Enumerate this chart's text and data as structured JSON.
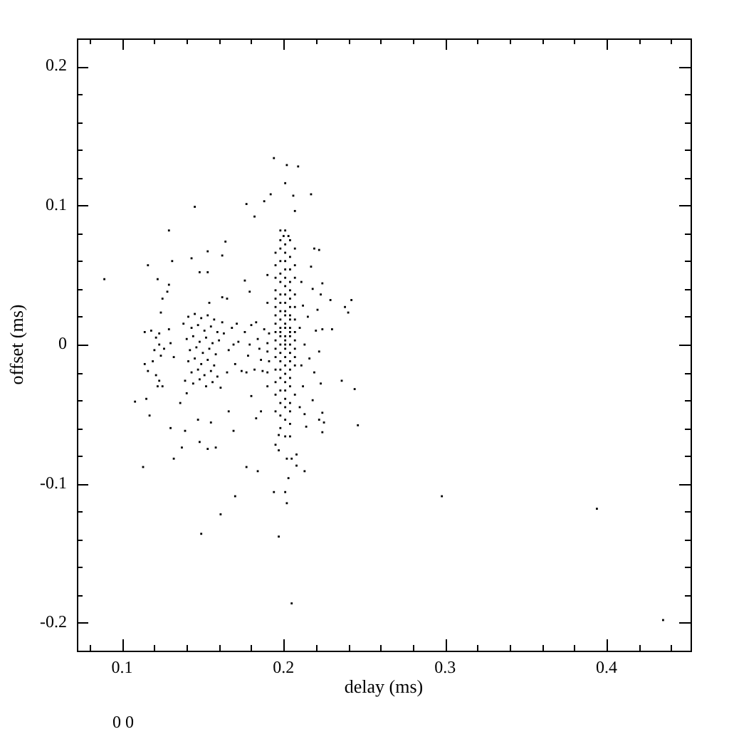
{
  "chart_data": {
    "type": "scatter",
    "xlabel": "delay (ms)",
    "ylabel": "offset (ms)",
    "annotations": [
      "0 0"
    ],
    "color": "#000000",
    "marker": "square",
    "grid": false,
    "legend": false,
    "xlim": [
      0.072,
      0.452
    ],
    "ylim": [
      -0.22,
      0.22
    ],
    "xticks": [
      {
        "value": 0.08,
        "label": null
      },
      0.1,
      {
        "value": 0.12,
        "label": null
      },
      {
        "value": 0.14,
        "label": null
      },
      {
        "value": 0.16,
        "label": null
      },
      {
        "value": 0.18,
        "label": null
      },
      0.2,
      {
        "value": 0.22,
        "label": null
      },
      {
        "value": 0.24,
        "label": null
      },
      {
        "value": 0.26,
        "label": null
      },
      {
        "value": 0.28,
        "label": null
      },
      0.3,
      {
        "value": 0.32,
        "label": null
      },
      {
        "value": 0.34,
        "label": null
      },
      {
        "value": 0.36,
        "label": null
      },
      {
        "value": 0.38,
        "label": null
      },
      0.4,
      {
        "value": 0.42,
        "label": null
      },
      {
        "value": 0.44,
        "label": null
      }
    ],
    "yticks": [
      -0.2,
      {
        "value": -0.18,
        "label": null
      },
      {
        "value": -0.16,
        "label": null
      },
      {
        "value": -0.14,
        "label": null
      },
      {
        "value": -0.12,
        "label": null
      },
      -0.1,
      {
        "value": -0.08,
        "label": null
      },
      {
        "value": -0.06,
        "label": null
      },
      {
        "value": -0.04,
        "label": null
      },
      {
        "value": -0.02,
        "label": null
      },
      0,
      {
        "value": 0.02,
        "label": null
      },
      {
        "value": 0.04,
        "label": null
      },
      {
        "value": 0.06,
        "label": null
      },
      {
        "value": 0.08,
        "label": null
      },
      0.1,
      {
        "value": 0.12,
        "label": null
      },
      {
        "value": 0.14,
        "label": null
      },
      {
        "value": 0.16,
        "label": null
      },
      {
        "value": 0.18,
        "label": null
      },
      0.2
    ],
    "x": [
      0.194,
      0.202,
      0.209,
      0.201,
      0.192,
      0.206,
      0.217,
      0.188,
      0.177,
      0.207,
      0.182,
      0.145,
      0.129,
      0.198,
      0.201,
      0.2,
      0.203,
      0.131,
      0.116,
      0.153,
      0.143,
      0.162,
      0.164,
      0.219,
      0.222,
      0.089,
      0.122,
      0.129,
      0.128,
      0.125,
      0.124,
      0.148,
      0.153,
      0.176,
      0.179,
      0.162,
      0.165,
      0.154,
      0.217,
      0.224,
      0.223,
      0.229,
      0.238,
      0.242,
      0.24,
      0.129,
      0.224,
      0.23,
      0.114,
      0.13,
      0.132,
      0.114,
      0.116,
      0.236,
      0.244,
      0.108,
      0.115,
      0.117,
      0.136,
      0.14,
      0.18,
      0.166,
      0.183,
      0.186,
      0.13,
      0.139,
      0.147,
      0.155,
      0.169,
      0.246,
      0.224,
      0.222,
      0.225,
      0.224,
      0.213,
      0.214,
      0.137,
      0.132,
      0.148,
      0.153,
      0.158,
      0.113,
      0.177,
      0.184,
      0.195,
      0.197,
      0.202,
      0.205,
      0.208,
      0.208,
      0.213,
      0.197,
      0.201,
      0.204,
      0.203,
      0.194,
      0.201,
      0.202,
      0.17,
      0.161,
      0.149,
      0.197,
      0.205,
      0.298,
      0.394,
      0.435,
      0.198,
      0.204,
      0.201,
      0.198,
      0.207,
      0.195,
      0.201,
      0.204,
      0.198,
      0.201,
      0.195,
      0.207,
      0.201,
      0.204,
      0.198,
      0.195,
      0.201,
      0.207,
      0.198,
      0.204,
      0.201,
      0.195,
      0.204,
      0.198,
      0.201,
      0.207,
      0.195,
      0.204,
      0.198,
      0.201,
      0.195,
      0.204,
      0.207,
      0.198,
      0.201,
      0.195,
      0.201,
      0.204,
      0.198,
      0.204,
      0.207,
      0.195,
      0.201,
      0.198,
      0.201,
      0.204,
      0.195,
      0.198,
      0.204,
      0.207,
      0.198,
      0.201,
      0.204,
      0.195,
      0.201,
      0.207,
      0.198,
      0.201,
      0.204,
      0.195,
      0.201,
      0.207,
      0.198,
      0.204,
      0.195,
      0.201,
      0.207,
      0.198,
      0.204,
      0.201,
      0.207,
      0.195,
      0.198,
      0.204,
      0.201,
      0.198,
      0.204,
      0.195,
      0.201,
      0.204,
      0.198,
      0.201,
      0.195,
      0.207,
      0.201,
      0.198,
      0.204,
      0.201,
      0.195,
      0.204,
      0.198,
      0.201,
      0.204,
      0.198,
      0.19,
      0.19,
      0.191,
      0.19,
      0.191,
      0.19,
      0.211,
      0.212,
      0.21,
      0.213,
      0.211,
      0.212,
      0.21,
      0.215,
      0.216,
      0.218,
      0.22,
      0.219,
      0.221,
      0.222,
      0.223,
      0.218,
      0.141,
      0.145,
      0.149,
      0.153,
      0.157,
      0.143,
      0.147,
      0.151,
      0.155,
      0.159,
      0.14,
      0.144,
      0.148,
      0.152,
      0.156,
      0.16,
      0.142,
      0.146,
      0.15,
      0.154,
      0.158,
      0.141,
      0.145,
      0.149,
      0.153,
      0.157,
      0.143,
      0.147,
      0.151,
      0.155,
      0.159,
      0.139,
      0.144,
      0.148,
      0.152,
      0.156,
      0.161,
      0.138,
      0.162,
      0.163,
      0.166,
      0.168,
      0.17,
      0.172,
      0.174,
      0.176,
      0.178,
      0.18,
      0.182,
      0.184,
      0.186,
      0.188,
      0.19,
      0.19,
      0.165,
      0.171,
      0.177,
      0.183,
      0.187,
      0.169,
      0.179,
      0.185,
      0.118,
      0.121,
      0.123,
      0.12,
      0.124,
      0.126,
      0.119,
      0.123,
      0.121,
      0.123,
      0.125,
      0.122
    ],
    "values": [
      0.134,
      0.129,
      0.128,
      0.116,
      0.108,
      0.107,
      0.108,
      0.103,
      0.101,
      0.096,
      0.092,
      0.099,
      0.082,
      0.082,
      0.082,
      0.078,
      0.078,
      0.06,
      0.057,
      0.067,
      0.062,
      0.064,
      0.074,
      0.069,
      0.068,
      0.047,
      0.047,
      0.043,
      0.038,
      0.033,
      0.023,
      0.052,
      0.052,
      0.046,
      0.038,
      0.034,
      0.033,
      0.03,
      0.056,
      0.044,
      0.036,
      0.032,
      0.027,
      0.032,
      0.023,
      0.011,
      0.011,
      0.011,
      0.009,
      0.001,
      -0.009,
      -0.014,
      -0.019,
      -0.026,
      -0.032,
      -0.041,
      -0.039,
      -0.051,
      -0.042,
      -0.035,
      -0.037,
      -0.048,
      -0.053,
      -0.048,
      -0.06,
      -0.062,
      -0.054,
      -0.056,
      -0.062,
      -0.058,
      -0.049,
      -0.054,
      -0.056,
      -0.063,
      -0.05,
      -0.059,
      -0.074,
      -0.082,
      -0.07,
      -0.075,
      -0.074,
      -0.088,
      -0.088,
      -0.091,
      -0.072,
      -0.076,
      -0.082,
      -0.082,
      -0.079,
      -0.087,
      -0.091,
      -0.065,
      -0.066,
      -0.066,
      -0.096,
      -0.106,
      -0.106,
      -0.114,
      -0.109,
      -0.122,
      -0.136,
      -0.138,
      -0.186,
      -0.109,
      -0.118,
      -0.198,
      0.075,
      0.075,
      0.072,
      0.069,
      0.069,
      0.066,
      0.066,
      0.063,
      0.06,
      0.06,
      0.057,
      0.057,
      0.054,
      0.054,
      0.051,
      0.048,
      0.048,
      0.048,
      0.045,
      0.045,
      0.042,
      0.039,
      0.039,
      0.036,
      0.036,
      0.036,
      0.033,
      0.033,
      0.03,
      0.03,
      0.027,
      0.027,
      0.027,
      0.024,
      0.024,
      0.021,
      0.021,
      0.021,
      0.018,
      0.018,
      0.018,
      0.015,
      0.015,
      0.012,
      0.012,
      0.012,
      0.009,
      0.009,
      0.009,
      0.009,
      0.006,
      0.006,
      0.006,
      0.003,
      0.003,
      0.003,
      0,
      0,
      0,
      -0.003,
      -0.003,
      -0.003,
      -0.006,
      -0.006,
      -0.009,
      -0.009,
      -0.009,
      -0.012,
      -0.012,
      -0.015,
      -0.015,
      -0.018,
      -0.018,
      -0.018,
      -0.021,
      -0.024,
      -0.024,
      -0.027,
      -0.027,
      -0.03,
      -0.033,
      -0.033,
      -0.036,
      -0.036,
      -0.039,
      -0.042,
      -0.042,
      -0.045,
      -0.048,
      -0.048,
      -0.051,
      -0.054,
      -0.057,
      -0.06,
      0.05,
      0.03,
      0.008,
      -0.005,
      -0.012,
      -0.03,
      0.045,
      0.028,
      0.012,
      0,
      -0.015,
      -0.03,
      -0.045,
      0.02,
      -0.01,
      0.04,
      0.01,
      -0.02,
      0.025,
      -0.005,
      -0.028,
      -0.04,
      0.02,
      0.022,
      0.019,
      0.021,
      0.018,
      0.012,
      0.014,
      0.01,
      0.013,
      0.009,
      0.004,
      0.006,
      0.002,
      0.005,
      0.001,
      0.003,
      -0.004,
      -0.002,
      -0.006,
      -0.003,
      -0.007,
      -0.012,
      -0.01,
      -0.014,
      -0.011,
      -0.015,
      -0.02,
      -0.018,
      -0.022,
      -0.019,
      -0.023,
      -0.026,
      -0.028,
      -0.025,
      -0.03,
      -0.027,
      -0.031,
      0.015,
      0.016,
      0.008,
      -0.004,
      0.012,
      -0.014,
      0.002,
      -0.019,
      0.009,
      -0.008,
      0.014,
      -0.018,
      0.004,
      -0.011,
      0.011,
      -0.02,
      0.001,
      -0.02,
      0.015,
      -0.02,
      0.016,
      -0.019,
      0,
      0,
      -0.003,
      0.01,
      0.005,
      0,
      -0.004,
      -0.008,
      -0.003,
      -0.012,
      0.008,
      -0.022,
      -0.026,
      -0.03,
      -0.03
    ]
  }
}
